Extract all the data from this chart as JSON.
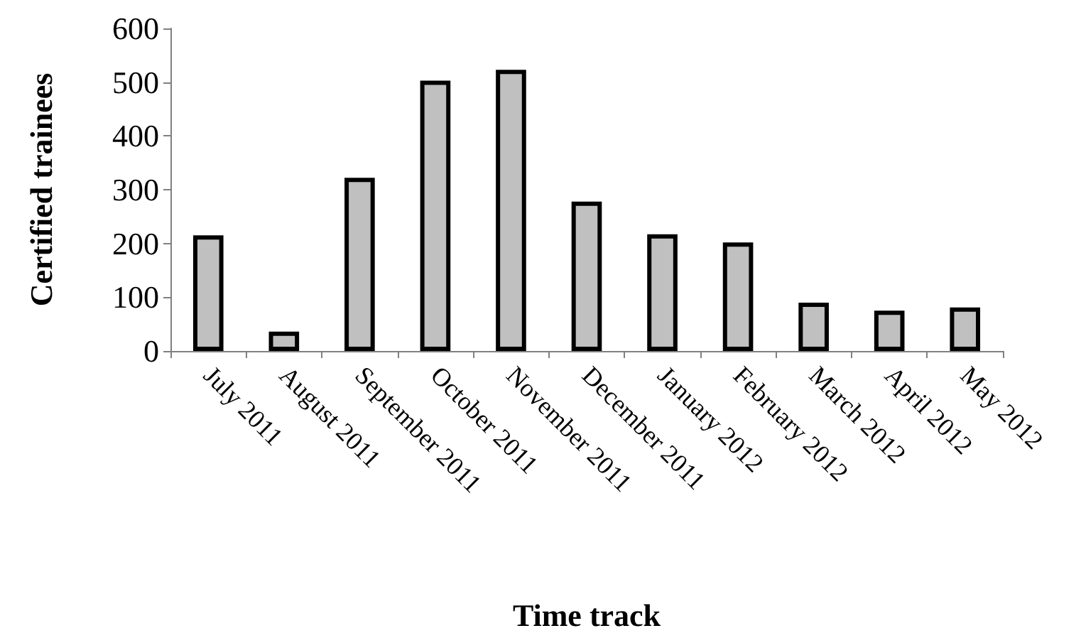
{
  "chart_data": {
    "type": "bar",
    "xlabel": "Time track",
    "ylabel": "Certified trainees",
    "categories": [
      "July 2011",
      "August 2011",
      "September 2011",
      "October 2011",
      "November 2011",
      "December 2011",
      "January 2012",
      "February 2012",
      "March 2012",
      "April 2012",
      "May 2012"
    ],
    "values": [
      215,
      36,
      322,
      503,
      523,
      278,
      217,
      202,
      90,
      75,
      81
    ],
    "color": "#c0c0c0",
    "ylim": [
      0,
      600
    ],
    "yticks": [
      0,
      100,
      200,
      300,
      400,
      500,
      600
    ],
    "grid": false
  }
}
